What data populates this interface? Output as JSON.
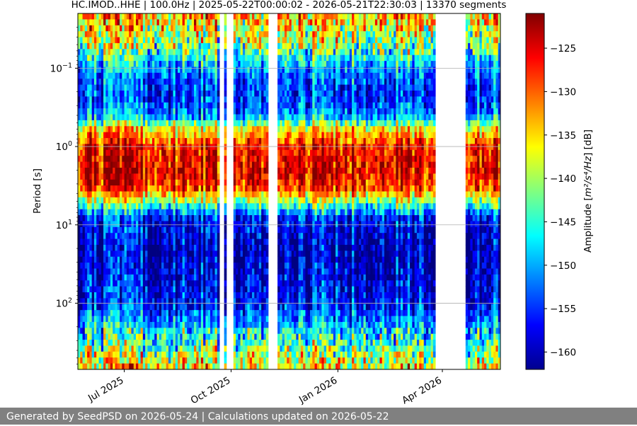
{
  "chart_data": {
    "type": "heatmap",
    "title": "HC.IMOD..HHE | 100.0Hz | 2025-05-22T00:00:02 - 2026-05-21T22:30:03 | 13370 segments",
    "xlabel": "",
    "ylabel": "Period [s]",
    "y_scale": "log",
    "y_inverted": true,
    "ylim": [
      0.02,
      700
    ],
    "xlim": [
      "2025-05-22",
      "2026-05-21"
    ],
    "x_ticks": [
      {
        "date": "2025-07-01",
        "label": "Jul 2025"
      },
      {
        "date": "2025-10-01",
        "label": "Oct 2025"
      },
      {
        "date": "2026-01-01",
        "label": "Jan 2026"
      },
      {
        "date": "2026-04-01",
        "label": "Apr 2026"
      }
    ],
    "y_ticks": [
      {
        "value": 0.1,
        "base": "10",
        "exp": "−1"
      },
      {
        "value": 1,
        "base": "10",
        "exp": "0"
      },
      {
        "value": 10,
        "base": "10",
        "exp": "1"
      },
      {
        "value": 100,
        "base": "10",
        "exp": "2"
      }
    ],
    "grid": true,
    "colormap": "jet",
    "colorbar": {
      "label_prefix": "Amplitude [",
      "label_unit": "m²/s⁴/Hz",
      "label_suffix": "] [dB]",
      "range": [
        -162,
        -121
      ],
      "ticks": [
        -125,
        -130,
        -135,
        -140,
        -145,
        -150,
        -155,
        -160
      ],
      "tick_labels": [
        "−125",
        "−130",
        "−135",
        "−140",
        "−145",
        "−150",
        "−155",
        "−160"
      ]
    },
    "data_gaps": [
      [
        "2025-09-21",
        "2025-09-25"
      ],
      [
        "2025-09-28",
        "2025-10-03"
      ],
      [
        "2025-11-02",
        "2025-11-10"
      ],
      [
        "2026-03-26",
        "2026-03-31"
      ],
      [
        "2026-04-02",
        "2026-04-20"
      ]
    ],
    "spectrum_profile": [
      {
        "period": 0.02,
        "db": -132
      },
      {
        "period": 0.05,
        "db": -140
      },
      {
        "period": 0.1,
        "db": -150
      },
      {
        "period": 0.2,
        "db": -155
      },
      {
        "period": 0.4,
        "db": -151
      },
      {
        "period": 0.6,
        "db": -135
      },
      {
        "period": 1,
        "db": -126
      },
      {
        "period": 2,
        "db": -124
      },
      {
        "period": 3.5,
        "db": -128
      },
      {
        "period": 5,
        "db": -140
      },
      {
        "period": 8,
        "db": -155
      },
      {
        "period": 20,
        "db": -159
      },
      {
        "period": 100,
        "db": -156
      },
      {
        "period": 250,
        "db": -146
      },
      {
        "period": 700,
        "db": -134
      }
    ]
  },
  "footer": {
    "text": "Generated by SeedPSD on 2026-05-24 | Calculations updated on 2026-05-22"
  }
}
